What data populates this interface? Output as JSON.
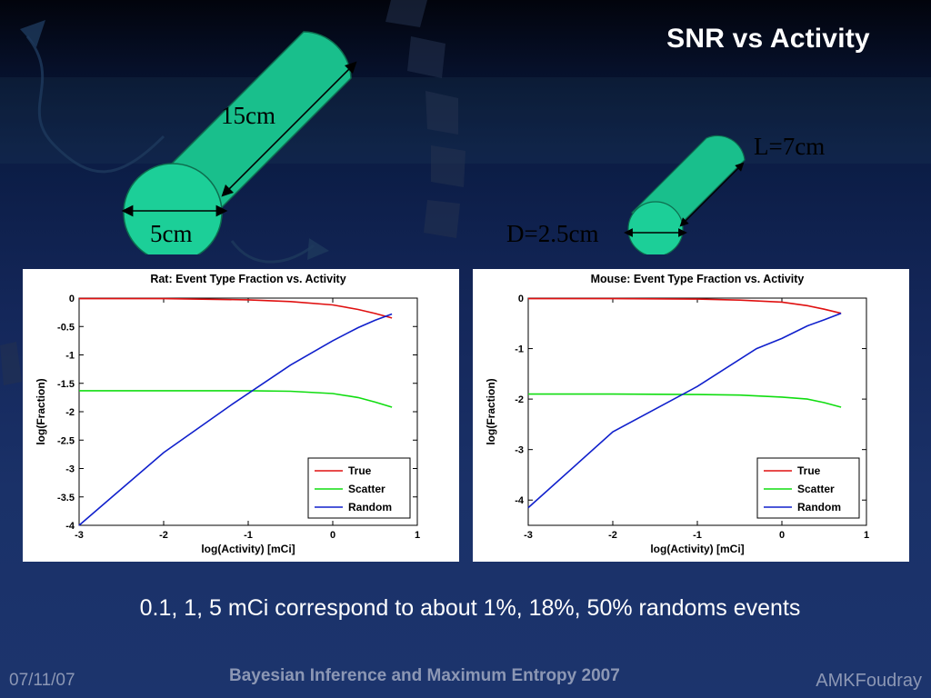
{
  "slide": {
    "title": "SNR vs Activity",
    "caption": "0.1, 1, 5 mCi correspond to about 1%, 18%, 50% randoms events",
    "footer_left": "07/11/07",
    "footer_center": "Bayesian Inference and Maximum Entropy 2007",
    "footer_right": "AMKFoudray"
  },
  "cylinders": {
    "rat": {
      "length_label": "15cm",
      "diameter_label": "5cm"
    },
    "mouse": {
      "length_label": "L=7cm",
      "diameter_label": "D=2.5cm"
    }
  },
  "colors": {
    "cylinder": "#1abf8c",
    "true": "#e01010",
    "scatter": "#10dd10",
    "random": "#1020cc",
    "title_text": "#ffffff",
    "footer_text": "#8c97b4"
  },
  "chart_data": [
    {
      "type": "line",
      "title": "Rat: Event Type Fraction vs. Activity",
      "xlabel": "log(Activity) [mCi]",
      "ylabel": "log(Fraction)",
      "xlim": [
        -3,
        1
      ],
      "ylim": [
        -4,
        0
      ],
      "xticks": [
        "-3",
        "-2",
        "-1",
        "0",
        "1"
      ],
      "yticks": [
        "0",
        "-0.5",
        "-1",
        "-1.5",
        "-2",
        "-2.5",
        "-3",
        "-3.5",
        "-4"
      ],
      "legend_position": "bottom-right",
      "grid": false,
      "series": [
        {
          "name": "True",
          "x": [
            -3,
            -2,
            -1,
            -0.5,
            0,
            0.3,
            0.5,
            0.7
          ],
          "y": [
            -0.01,
            -0.01,
            -0.03,
            -0.06,
            -0.12,
            -0.2,
            -0.27,
            -0.35
          ]
        },
        {
          "name": "Scatter",
          "x": [
            -3,
            -2,
            -1,
            -0.5,
            0,
            0.3,
            0.5,
            0.7
          ],
          "y": [
            -1.63,
            -1.63,
            -1.63,
            -1.64,
            -1.68,
            -1.75,
            -1.83,
            -1.92
          ]
        },
        {
          "name": "Random",
          "x": [
            -3,
            -2,
            -1.2,
            -0.5,
            0,
            0.3,
            0.5,
            0.7
          ],
          "y": [
            -4,
            -2.72,
            -1.88,
            -1.18,
            -0.75,
            -0.52,
            -0.39,
            -0.28
          ]
        }
      ]
    },
    {
      "type": "line",
      "title": "Mouse: Event Type Fraction vs. Activity",
      "xlabel": "log(Activity) [mCi]",
      "ylabel": "log(Fraction)",
      "xlim": [
        -3,
        1
      ],
      "ylim": [
        -4.5,
        0
      ],
      "xticks": [
        "-3",
        "-2",
        "-1",
        "0",
        "1"
      ],
      "yticks": [
        "0",
        "-1",
        "-2",
        "-3",
        "-4"
      ],
      "legend_position": "bottom-right",
      "grid": false,
      "series": [
        {
          "name": "True",
          "x": [
            -3,
            -2,
            -1,
            -0.5,
            0,
            0.3,
            0.5,
            0.7
          ],
          "y": [
            -0.01,
            -0.01,
            -0.02,
            -0.04,
            -0.08,
            -0.15,
            -0.22,
            -0.3
          ]
        },
        {
          "name": "Scatter",
          "x": [
            -3,
            -2,
            -1,
            -0.5,
            0,
            0.3,
            0.5,
            0.7
          ],
          "y": [
            -1.9,
            -1.9,
            -1.91,
            -1.92,
            -1.96,
            -2.0,
            -2.07,
            -2.16
          ]
        },
        {
          "name": "Random",
          "x": [
            -3,
            -2,
            -1,
            -0.3,
            0,
            0.3,
            0.5,
            0.7
          ],
          "y": [
            -4.15,
            -2.65,
            -1.75,
            -1.0,
            -0.8,
            -0.55,
            -0.43,
            -0.3
          ]
        }
      ]
    }
  ]
}
